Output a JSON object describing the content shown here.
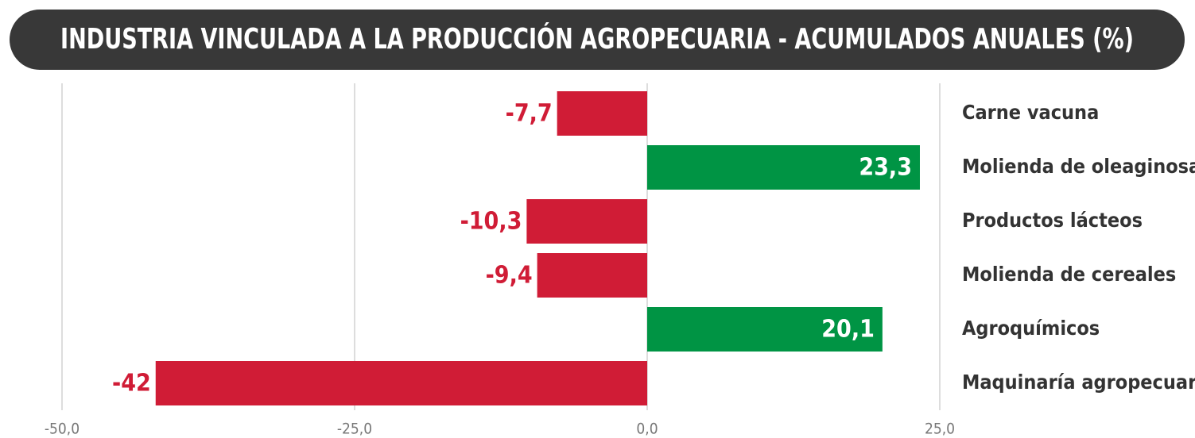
{
  "chart_data": {
    "type": "barh",
    "title": "INDUSTRIA VINCULADA A LA PRODUCCIÓN AGROPECUARIA - ACUMULADOS ANUALES (%)",
    "categories": [
      "Carne vacuna",
      "Molienda de oleaginosas",
      "Productos lácteos",
      "Molienda de cereales",
      "Agroquímicos",
      "Maquinaría agropecuaria"
    ],
    "values": [
      -7.7,
      23.3,
      -10.3,
      -9.4,
      20.1,
      -42
    ],
    "value_labels": [
      "-7,7",
      "23,3",
      "-10,3",
      "-9,4",
      "20,1",
      "-42"
    ],
    "negative_color": "#d01c36",
    "positive_color": "#009444",
    "xlim": [
      -50,
      25
    ],
    "xticks": [
      {
        "value": -50,
        "label": "-50,0"
      },
      {
        "value": -25,
        "label": "-25,0"
      },
      {
        "value": 0,
        "label": "0,0"
      },
      {
        "value": 25,
        "label": "25,0"
      }
    ],
    "grid": true
  }
}
